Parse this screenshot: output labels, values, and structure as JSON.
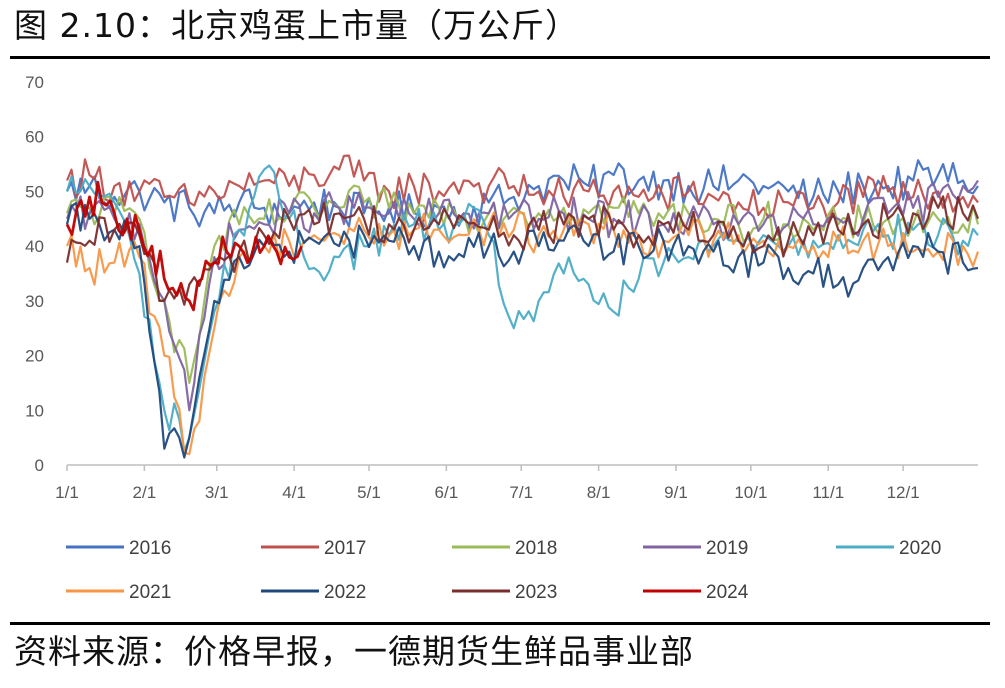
{
  "header": {
    "title": "图 2.10：北京鸡蛋上市量（万公斤）"
  },
  "footer": {
    "source": "资料来源：价格早报，一德期货生鲜品事业部"
  },
  "chart_data": {
    "type": "line",
    "title": "图 2.10：北京鸡蛋上市量（万公斤）",
    "ylabel": "",
    "xlabel": "",
    "ylim": [
      0,
      70
    ],
    "yticks": [
      0,
      10,
      20,
      30,
      40,
      50,
      60,
      70
    ],
    "xlim": [
      1,
      366
    ],
    "x_ticks": [
      {
        "label": "1/1",
        "x": 1
      },
      {
        "label": "2/1",
        "x": 32
      },
      {
        "label": "3/1",
        "x": 61
      },
      {
        "label": "4/1",
        "x": 92
      },
      {
        "label": "5/1",
        "x": 122
      },
      {
        "label": "6/1",
        "x": 153
      },
      {
        "label": "7/1",
        "x": 183
      },
      {
        "label": "8/1",
        "x": 214
      },
      {
        "label": "9/1",
        "x": 245
      },
      {
        "label": "10/1",
        "x": 275
      },
      {
        "label": "11/1",
        "x": 306
      },
      {
        "label": "12/1",
        "x": 336
      }
    ],
    "x_unit_note": "x = day of year",
    "grid": false,
    "legend_position": "bottom",
    "series": [
      {
        "name": "2016",
        "color": "#4472C4",
        "x": [
          1,
          10,
          20,
          30,
          40,
          50,
          60,
          70,
          80,
          90,
          100,
          110,
          120,
          130,
          140,
          150,
          160,
          170,
          180,
          190,
          200,
          210,
          220,
          230,
          240,
          250,
          260,
          270,
          280,
          290,
          300,
          310,
          320,
          330,
          340,
          350,
          360,
          366
        ],
        "values": [
          50,
          51,
          49,
          50,
          48,
          47,
          46,
          48,
          47,
          46,
          48,
          47,
          46,
          47,
          46,
          47,
          46,
          48,
          49,
          51,
          52,
          51,
          53,
          52,
          52,
          51,
          51,
          52,
          51,
          50,
          49,
          50,
          51,
          51,
          52,
          53,
          52,
          51
        ]
      },
      {
        "name": "2017",
        "color": "#C0504D",
        "x": [
          1,
          10,
          20,
          30,
          40,
          50,
          60,
          70,
          80,
          90,
          100,
          110,
          120,
          130,
          140,
          150,
          160,
          170,
          180,
          190,
          200,
          210,
          220,
          230,
          240,
          250,
          260,
          270,
          280,
          290,
          300,
          310,
          320,
          330,
          340,
          350,
          360,
          366
        ],
        "values": [
          52,
          53,
          51,
          50,
          49,
          48,
          50,
          51,
          52,
          51,
          53,
          54,
          52,
          50,
          51,
          50,
          52,
          51,
          51,
          50,
          49,
          50,
          50,
          49,
          49,
          50,
          49,
          48,
          47,
          48,
          47,
          48,
          49,
          50,
          49,
          50,
          49,
          48
        ]
      },
      {
        "name": "2018",
        "color": "#9BBB59",
        "x": [
          1,
          10,
          20,
          30,
          40,
          50,
          60,
          70,
          80,
          90,
          100,
          110,
          120,
          130,
          140,
          150,
          160,
          170,
          180,
          190,
          200,
          210,
          220,
          230,
          240,
          250,
          260,
          270,
          280,
          290,
          300,
          310,
          320,
          330,
          340,
          350,
          360,
          366
        ],
        "values": [
          46,
          47,
          46,
          45,
          30,
          15,
          40,
          44,
          45,
          46,
          47,
          47,
          48,
          47,
          46,
          47,
          46,
          46,
          47,
          46,
          47,
          46,
          47,
          46,
          45,
          46,
          45,
          44,
          45,
          44,
          43,
          44,
          44,
          45,
          44,
          45,
          44,
          44
        ]
      },
      {
        "name": "2019",
        "color": "#8064A2",
        "x": [
          1,
          10,
          20,
          30,
          40,
          50,
          60,
          70,
          80,
          90,
          100,
          110,
          120,
          130,
          140,
          150,
          160,
          170,
          180,
          190,
          200,
          210,
          220,
          230,
          240,
          250,
          260,
          270,
          280,
          290,
          300,
          310,
          320,
          330,
          340,
          350,
          360,
          366
        ],
        "values": [
          45,
          46,
          45,
          44,
          30,
          10,
          38,
          43,
          44,
          46,
          46,
          47,
          47,
          46,
          45,
          46,
          46,
          46,
          46,
          45,
          46,
          45,
          45,
          45,
          44,
          45,
          44,
          44,
          44,
          44,
          44,
          45,
          45,
          46,
          47,
          49,
          51,
          52
        ]
      },
      {
        "name": "2020",
        "color": "#4BACC6",
        "x": [
          1,
          10,
          20,
          30,
          40,
          50,
          60,
          70,
          80,
          90,
          100,
          110,
          120,
          130,
          140,
          150,
          160,
          170,
          180,
          190,
          200,
          210,
          220,
          230,
          240,
          250,
          260,
          270,
          280,
          290,
          300,
          310,
          320,
          330,
          340,
          350,
          360,
          366
        ],
        "values": [
          50,
          51,
          48,
          35,
          10,
          5,
          28,
          43,
          54,
          45,
          36,
          38,
          40,
          42,
          44,
          43,
          45,
          42,
          25,
          30,
          35,
          33,
          28,
          34,
          37,
          38,
          40,
          41,
          42,
          40,
          41,
          42,
          43,
          42,
          43,
          42,
          41,
          42
        ]
      },
      {
        "name": "2021",
        "color": "#F79646",
        "x": [
          1,
          10,
          20,
          30,
          40,
          50,
          60,
          70,
          80,
          90,
          100,
          110,
          120,
          130,
          140,
          150,
          160,
          170,
          180,
          190,
          200,
          210,
          220,
          230,
          240,
          250,
          260,
          270,
          280,
          290,
          300,
          310,
          320,
          330,
          340,
          350,
          360,
          366
        ],
        "values": [
          40,
          36,
          37,
          38,
          20,
          2,
          25,
          38,
          40,
          41,
          42,
          42,
          43,
          42,
          43,
          43,
          42,
          44,
          43,
          42,
          43,
          44,
          43,
          42,
          41,
          42,
          41,
          42,
          41,
          40,
          40,
          41,
          41,
          40,
          39,
          39,
          40,
          39
        ]
      },
      {
        "name": "2022",
        "color": "#1F497D",
        "x": [
          1,
          10,
          20,
          30,
          40,
          50,
          60,
          70,
          80,
          90,
          100,
          110,
          120,
          130,
          140,
          150,
          160,
          170,
          180,
          190,
          200,
          210,
          220,
          230,
          240,
          250,
          260,
          270,
          280,
          290,
          300,
          310,
          320,
          330,
          340,
          350,
          360,
          366
        ],
        "values": [
          44,
          45,
          43,
          40,
          3,
          5,
          30,
          38,
          40,
          39,
          41,
          40,
          42,
          41,
          40,
          39,
          38,
          40,
          39,
          40,
          41,
          40,
          39,
          40,
          41,
          40,
          39,
          38,
          37,
          36,
          35,
          33,
          36,
          38,
          40,
          39,
          37,
          36
        ]
      },
      {
        "name": "2023",
        "color": "#7B2C2C",
        "x": [
          1,
          10,
          20,
          30,
          40,
          50,
          60,
          70,
          80,
          90,
          100,
          110,
          120,
          130,
          140,
          150,
          160,
          170,
          180,
          190,
          200,
          210,
          220,
          230,
          240,
          250,
          260,
          270,
          280,
          290,
          300,
          310,
          320,
          330,
          340,
          350,
          360,
          366
        ],
        "values": [
          37,
          41,
          43,
          42,
          30,
          33,
          37,
          39,
          42,
          45,
          44,
          46,
          45,
          44,
          43,
          44,
          45,
          43,
          42,
          43,
          44,
          45,
          43,
          42,
          44,
          43,
          42,
          41,
          40,
          41,
          42,
          43,
          44,
          45,
          46,
          47,
          46,
          45
        ]
      },
      {
        "name": "2024",
        "color": "#C00000",
        "x": [
          1,
          5,
          10,
          15,
          20,
          25,
          30,
          35,
          40,
          45,
          50,
          55,
          60,
          65,
          70,
          75,
          80,
          85,
          90,
          95
        ],
        "values": [
          44,
          47,
          49,
          48,
          46,
          45,
          43,
          40,
          34,
          31,
          30,
          34,
          37,
          39,
          40,
          38,
          40,
          39,
          38,
          40
        ]
      }
    ]
  }
}
